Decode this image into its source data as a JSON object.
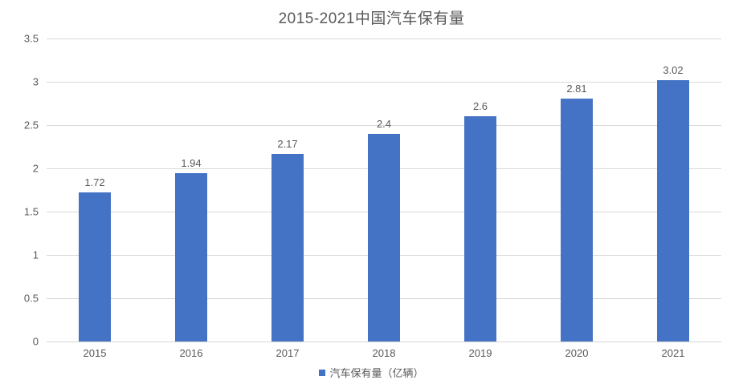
{
  "title": "2015-2021中国汽车保有量",
  "legend": {
    "label": "汽车保有量（亿辆）",
    "marker_color": "#4472c4"
  },
  "colors": {
    "bar": "#4472c4",
    "gridline": "#d9d9d9",
    "text": "#595959",
    "background": "#ffffff"
  },
  "chart_data": {
    "type": "bar",
    "title": "2015-2021中国汽车保有量",
    "categories": [
      "2015",
      "2016",
      "2017",
      "2018",
      "2019",
      "2020",
      "2021"
    ],
    "values": [
      1.72,
      1.94,
      2.17,
      2.4,
      2.6,
      2.81,
      3.02
    ],
    "value_labels": [
      "1.72",
      "1.94",
      "2.17",
      "2.4",
      "2.6",
      "2.81",
      "3.02"
    ],
    "series_name": "汽车保有量（亿辆）",
    "xlabel": "",
    "ylabel": "",
    "ylim": [
      0,
      3.5
    ],
    "yticks": [
      "0",
      "0.5",
      "1",
      "1.5",
      "2",
      "2.5",
      "3",
      "3.5"
    ],
    "grid": true,
    "legend_position": "bottom",
    "bar_color": "#4472c4"
  }
}
